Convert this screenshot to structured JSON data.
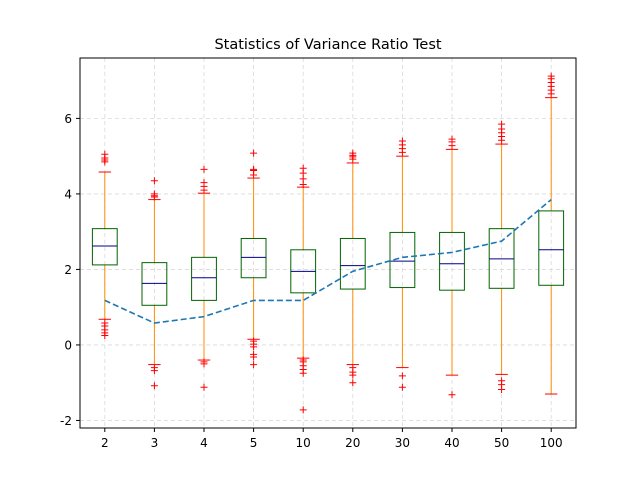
{
  "chart_data": {
    "type": "box",
    "title": "Statistics of Variance Ratio Test",
    "xlabel": "",
    "ylabel": "",
    "categories": [
      "2",
      "3",
      "4",
      "5",
      "10",
      "20",
      "30",
      "40",
      "50",
      "100"
    ],
    "ylim": [
      -2.2,
      7.6
    ],
    "yticks": [
      -2,
      0,
      2,
      4,
      6
    ],
    "grid": true,
    "colors": {
      "box": "#006400",
      "median": "#00008b",
      "whisker": "#ff8c00",
      "flier": "#ff0000",
      "line": "#1f77b4",
      "grid": "#d9d9d9"
    },
    "boxes": [
      {
        "q1": 2.12,
        "median": 2.62,
        "q3": 3.08,
        "whisker_low": 0.68,
        "whisker_high": 4.58,
        "fliers": [
          0.25,
          0.32,
          0.4,
          0.5,
          0.58,
          4.85,
          4.9,
          4.95,
          5.05
        ]
      },
      {
        "q1": 1.05,
        "median": 1.63,
        "q3": 2.18,
        "whisker_low": -0.52,
        "whisker_high": 3.85,
        "fliers": [
          -0.6,
          -0.68,
          -1.08,
          3.92,
          3.95,
          4.0,
          4.35
        ]
      },
      {
        "q1": 1.18,
        "median": 1.78,
        "q3": 2.32,
        "whisker_low": -0.4,
        "whisker_high": 4.02,
        "fliers": [
          -0.45,
          -0.5,
          -1.12,
          4.1,
          4.2,
          4.3,
          4.65
        ]
      },
      {
        "q1": 1.78,
        "median": 2.32,
        "q3": 2.82,
        "whisker_low": 0.15,
        "whisker_high": 4.42,
        "fliers": [
          0.1,
          0.02,
          -0.05,
          -0.25,
          -0.32,
          -0.52,
          4.5,
          4.62,
          4.65,
          5.08
        ]
      },
      {
        "q1": 1.38,
        "median": 1.95,
        "q3": 2.52,
        "whisker_low": -0.35,
        "whisker_high": 4.18,
        "fliers": [
          -0.4,
          -0.45,
          -0.55,
          -0.65,
          -0.75,
          -1.72,
          4.25,
          4.4,
          4.55,
          4.68
        ]
      },
      {
        "q1": 1.48,
        "median": 2.1,
        "q3": 2.82,
        "whisker_low": -0.52,
        "whisker_high": 4.82,
        "fliers": [
          -0.6,
          -0.72,
          -0.8,
          -1.0,
          4.92,
          4.98,
          5.02,
          5.08
        ]
      },
      {
        "q1": 1.52,
        "median": 2.22,
        "q3": 2.98,
        "whisker_low": -0.6,
        "whisker_high": 5.0,
        "fliers": [
          -0.82,
          -1.12,
          5.1,
          5.2,
          5.3,
          5.4
        ]
      },
      {
        "q1": 1.45,
        "median": 2.15,
        "q3": 2.98,
        "whisker_low": -0.8,
        "whisker_high": 5.18,
        "fliers": [
          -1.32,
          5.28,
          5.38,
          5.45
        ]
      },
      {
        "q1": 1.5,
        "median": 2.28,
        "q3": 3.08,
        "whisker_low": -0.78,
        "whisker_high": 5.32,
        "fliers": [
          -0.95,
          -1.05,
          -1.18,
          5.42,
          5.52,
          5.62,
          5.72,
          5.85
        ]
      },
      {
        "q1": 1.58,
        "median": 2.52,
        "q3": 3.55,
        "whisker_low": -1.3,
        "whisker_high": 6.55,
        "fliers": [
          6.65,
          6.75,
          6.85,
          6.95,
          7.05,
          7.12
        ]
      }
    ],
    "line_series": {
      "style": "dashed",
      "values": [
        1.18,
        0.58,
        0.75,
        1.18,
        1.18,
        1.95,
        2.32,
        2.45,
        2.75,
        3.85
      ]
    }
  }
}
